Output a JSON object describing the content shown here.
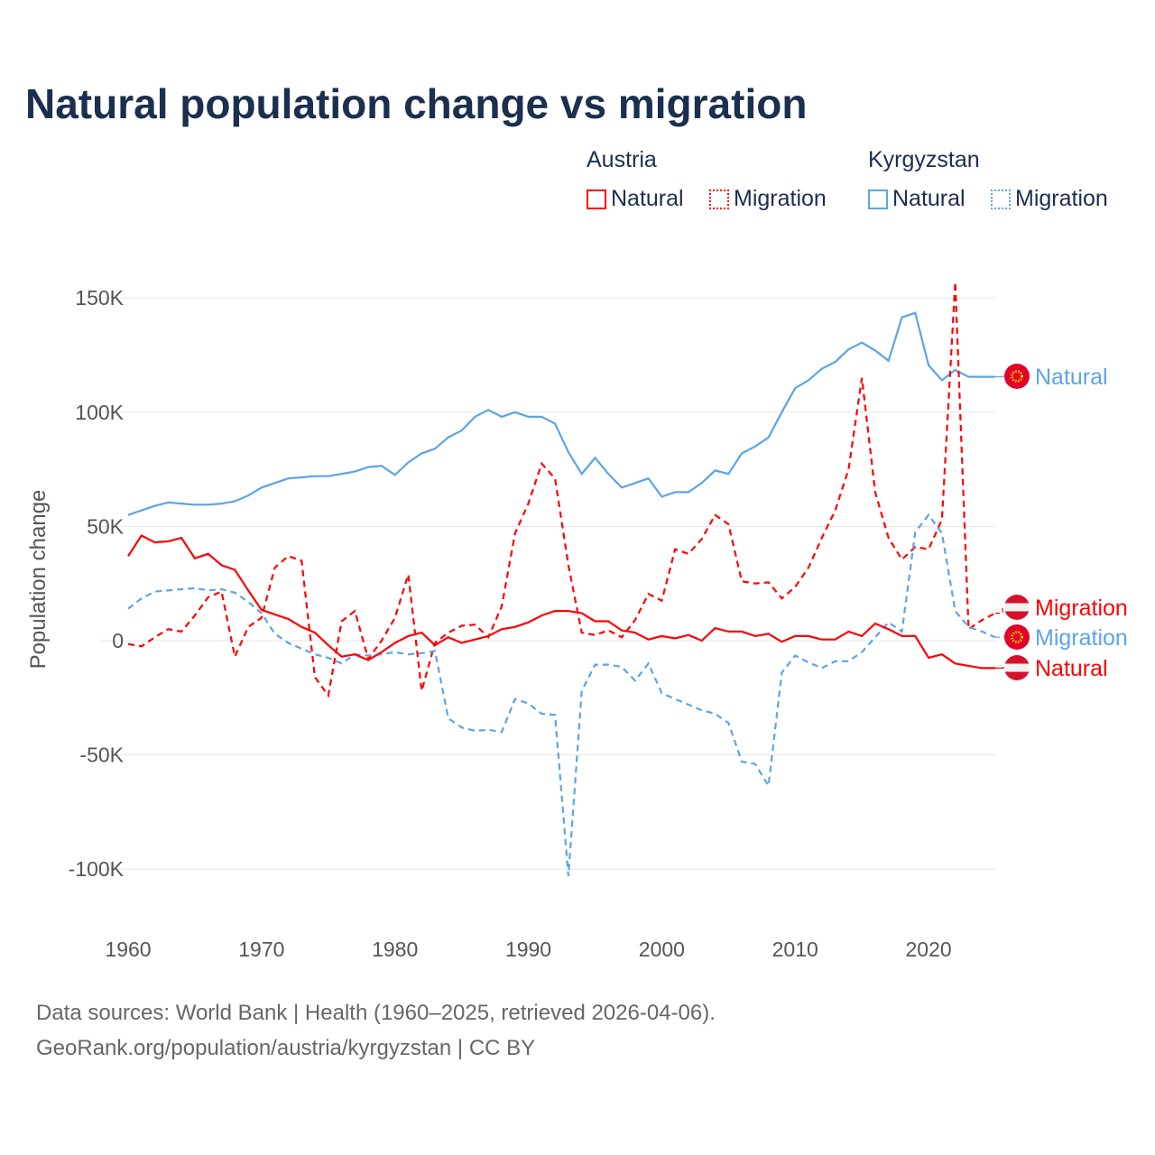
{
  "title": "Natural population change vs migration",
  "legend": {
    "groups": [
      {
        "name": "Austria",
        "items": [
          "Natural",
          "Migration"
        ]
      },
      {
        "name": "Kyrgyzstan",
        "items": [
          "Natural",
          "Migration"
        ]
      }
    ]
  },
  "colors": {
    "austria": "#ff0000",
    "kyrgyzstan": "#5ba4e8"
  },
  "footer": {
    "line1": "Data sources: World Bank | Health (1960–2025, retrieved 2026-04-06).",
    "line2": "GeoRank.org/population/austria/kyrgyzstan | CC BY"
  },
  "chart_data": {
    "type": "line",
    "title": "Natural population change vs migration",
    "xlabel": "",
    "ylabel": "Population change",
    "xlim": [
      1960,
      2025
    ],
    "ylim": [
      -120000,
      160000
    ],
    "x_ticks": [
      1960,
      1970,
      1980,
      1990,
      2000,
      2010,
      2020
    ],
    "x_tick_labels": [
      "1960",
      "1970",
      "1980",
      "1990",
      "2000",
      "2010",
      "2020"
    ],
    "y_ticks": [
      150000,
      100000,
      50000,
      0,
      -50000,
      -100000
    ],
    "y_tick_labels": [
      "150K",
      "100K",
      "50K",
      "0",
      "-50K",
      "-100K"
    ],
    "grid": true,
    "legend_position": "top-right",
    "x_start": 1960,
    "series": [
      {
        "name": "Kyrgyzstan Natural",
        "label": "Natural",
        "country": "kyrgyzstan",
        "dash": false,
        "values": [
          55,
          57,
          59,
          60.5,
          60,
          59.5,
          59.5,
          60,
          61,
          63.5,
          67,
          69,
          71,
          71.5,
          72,
          72,
          73,
          74,
          76,
          76.5,
          72.5,
          78,
          82,
          84,
          89,
          92,
          98,
          101,
          98,
          100,
          98,
          98,
          95,
          82.5,
          73,
          80,
          73,
          67,
          69,
          71,
          63,
          65,
          65,
          69,
          74.5,
          73,
          82,
          85,
          89,
          100,
          110.5,
          114,
          119,
          122,
          127.5,
          130.5,
          127,
          122.5,
          141.5,
          143.5,
          120.5,
          114,
          118.5,
          115.5,
          115.5,
          115.5
        ]
      },
      {
        "name": "Austria Migration",
        "label": "Migration",
        "country": "austria",
        "dash": true,
        "values": [
          -1.5,
          -2.5,
          1.5,
          5,
          4,
          11,
          19,
          21.5,
          -7,
          6,
          10,
          32,
          37,
          35,
          -16,
          -24,
          8.5,
          13,
          -8,
          0,
          10,
          29,
          -22,
          -1,
          3.5,
          6.5,
          7,
          1.5,
          15,
          47,
          60,
          77.5,
          71,
          33,
          3.5,
          2.5,
          4.5,
          1.5,
          9,
          20.5,
          17.5,
          40,
          38,
          44.5,
          55,
          51,
          26,
          25,
          25.5,
          18.5,
          23.5,
          32,
          45,
          57,
          75,
          115,
          65,
          45,
          35.5,
          41,
          40,
          53,
          157,
          5,
          9,
          12
        ]
      },
      {
        "name": "Kyrgyzstan Migration",
        "label": "Migration",
        "country": "kyrgyzstan",
        "dash": true,
        "values": [
          14,
          18.5,
          21.5,
          22,
          22.5,
          23,
          22,
          22.5,
          21,
          17,
          12,
          3,
          -1,
          -3.5,
          -6,
          -7.5,
          -10,
          -6,
          -6.5,
          -6,
          -5,
          -6,
          -5.5,
          -4.5,
          -34,
          -38,
          -39.5,
          -39,
          -40,
          -25.5,
          -27.5,
          -32,
          -32.5,
          -103,
          -22,
          -10.5,
          -10.5,
          -11.5,
          -17.5,
          -10,
          -23,
          -25.5,
          -28,
          -30.5,
          -32,
          -36,
          -53,
          -54,
          -63.5,
          -14,
          -6.5,
          -9.5,
          -12,
          -9,
          -9,
          -5,
          1.5,
          8,
          4,
          47.5,
          55,
          47,
          13,
          6,
          4,
          1.5
        ]
      },
      {
        "name": "Austria Natural",
        "label": "Natural",
        "country": "austria",
        "dash": false,
        "values": [
          37,
          46,
          43,
          43.5,
          45,
          36,
          38,
          33,
          31,
          22,
          13.5,
          11.5,
          9.5,
          6,
          3.5,
          -2,
          -7,
          -6,
          -8.5,
          -5,
          -1,
          2,
          3.5,
          -2,
          1.5,
          -1,
          0.5,
          2,
          5,
          6,
          8,
          11,
          13,
          13,
          12,
          8.5,
          8.5,
          4.5,
          3.5,
          0.5,
          2,
          1,
          2.5,
          0,
          5.5,
          4,
          4,
          2,
          3,
          -0.5,
          2,
          2,
          0.5,
          0.5,
          4,
          2,
          7.5,
          5,
          2,
          2,
          -7.5,
          -6,
          -10,
          -11,
          -12,
          -12
        ]
      }
    ],
    "values_unit": "thousands"
  }
}
